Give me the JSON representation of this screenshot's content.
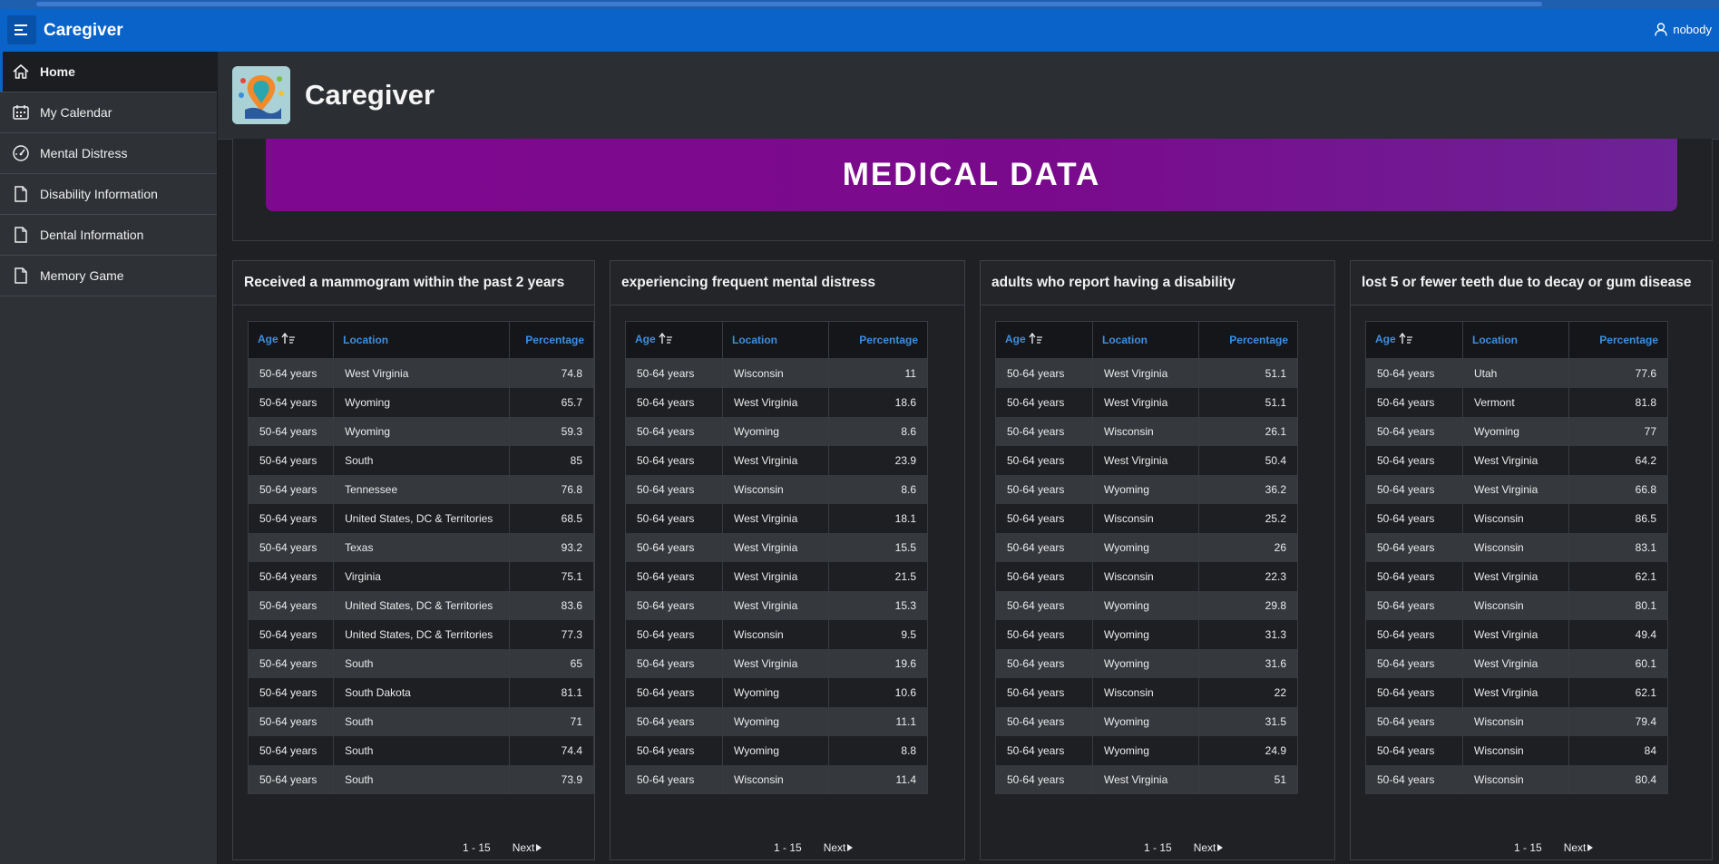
{
  "app": {
    "title": "Caregiver",
    "user": "nobody"
  },
  "sidebar": {
    "items": [
      {
        "label": "Home",
        "icon": "home-icon",
        "active": true
      },
      {
        "label": "My Calendar",
        "icon": "calendar-icon"
      },
      {
        "label": "Mental Distress",
        "icon": "gauge-icon"
      },
      {
        "label": "Disability Information",
        "icon": "document-icon"
      },
      {
        "label": "Dental Information",
        "icon": "document-icon"
      },
      {
        "label": "Memory Game",
        "icon": "document-icon"
      }
    ]
  },
  "page": {
    "title": "Caregiver",
    "banner": "MEDICAL DATA"
  },
  "colors": {
    "header": "#0a63c9",
    "banner": "#7f0890",
    "column_header": "#3d8ee0"
  },
  "reports": [
    {
      "title": "Received a mammogram within the past 2 years",
      "columns": [
        "Age",
        "Location",
        "Percentage"
      ],
      "rows": [
        [
          "50-64 years",
          "West Virginia",
          "74.8"
        ],
        [
          "50-64 years",
          "Wyoming",
          "65.7"
        ],
        [
          "50-64 years",
          "Wyoming",
          "59.3"
        ],
        [
          "50-64 years",
          "South",
          "85"
        ],
        [
          "50-64 years",
          "Tennessee",
          "76.8"
        ],
        [
          "50-64 years",
          "United States, DC & Territories",
          "68.5"
        ],
        [
          "50-64 years",
          "Texas",
          "93.2"
        ],
        [
          "50-64 years",
          "Virginia",
          "75.1"
        ],
        [
          "50-64 years",
          "United States, DC & Territories",
          "83.6"
        ],
        [
          "50-64 years",
          "United States, DC & Territories",
          "77.3"
        ],
        [
          "50-64 years",
          "South",
          "65"
        ],
        [
          "50-64 years",
          "South Dakota",
          "81.1"
        ],
        [
          "50-64 years",
          "South",
          "71"
        ],
        [
          "50-64 years",
          "South",
          "74.4"
        ],
        [
          "50-64 years",
          "South",
          "73.9"
        ]
      ],
      "pagination": {
        "range": "1 - 15",
        "next": "Next"
      }
    },
    {
      "title": "experiencing frequent mental distress",
      "columns": [
        "Age",
        "Location",
        "Percentage"
      ],
      "rows": [
        [
          "50-64 years",
          "Wisconsin",
          "11"
        ],
        [
          "50-64 years",
          "West Virginia",
          "18.6"
        ],
        [
          "50-64 years",
          "Wyoming",
          "8.6"
        ],
        [
          "50-64 years",
          "West Virginia",
          "23.9"
        ],
        [
          "50-64 years",
          "Wisconsin",
          "8.6"
        ],
        [
          "50-64 years",
          "West Virginia",
          "18.1"
        ],
        [
          "50-64 years",
          "West Virginia",
          "15.5"
        ],
        [
          "50-64 years",
          "West Virginia",
          "21.5"
        ],
        [
          "50-64 years",
          "West Virginia",
          "15.3"
        ],
        [
          "50-64 years",
          "Wisconsin",
          "9.5"
        ],
        [
          "50-64 years",
          "West Virginia",
          "19.6"
        ],
        [
          "50-64 years",
          "Wyoming",
          "10.6"
        ],
        [
          "50-64 years",
          "Wyoming",
          "11.1"
        ],
        [
          "50-64 years",
          "Wyoming",
          "8.8"
        ],
        [
          "50-64 years",
          "Wisconsin",
          "11.4"
        ]
      ],
      "pagination": {
        "range": "1 - 15",
        "next": "Next"
      }
    },
    {
      "title": "adults who report having a disability",
      "columns": [
        "Age",
        "Location",
        "Percentage"
      ],
      "rows": [
        [
          "50-64 years",
          "West Virginia",
          "51.1"
        ],
        [
          "50-64 years",
          "West Virginia",
          "51.1"
        ],
        [
          "50-64 years",
          "Wisconsin",
          "26.1"
        ],
        [
          "50-64 years",
          "West Virginia",
          "50.4"
        ],
        [
          "50-64 years",
          "Wyoming",
          "36.2"
        ],
        [
          "50-64 years",
          "Wisconsin",
          "25.2"
        ],
        [
          "50-64 years",
          "Wyoming",
          "26"
        ],
        [
          "50-64 years",
          "Wisconsin",
          "22.3"
        ],
        [
          "50-64 years",
          "Wyoming",
          "29.8"
        ],
        [
          "50-64 years",
          "Wyoming",
          "31.3"
        ],
        [
          "50-64 years",
          "Wyoming",
          "31.6"
        ],
        [
          "50-64 years",
          "Wisconsin",
          "22"
        ],
        [
          "50-64 years",
          "Wyoming",
          "31.5"
        ],
        [
          "50-64 years",
          "Wyoming",
          "24.9"
        ],
        [
          "50-64 years",
          "West Virginia",
          "51"
        ]
      ],
      "pagination": {
        "range": "1 - 15",
        "next": "Next"
      }
    },
    {
      "title": "lost 5 or fewer teeth due to decay or gum disease",
      "columns": [
        "Age",
        "Location",
        "Percentage"
      ],
      "rows": [
        [
          "50-64 years",
          "Utah",
          "77.6"
        ],
        [
          "50-64 years",
          "Vermont",
          "81.8"
        ],
        [
          "50-64 years",
          "Wyoming",
          "77"
        ],
        [
          "50-64 years",
          "West Virginia",
          "64.2"
        ],
        [
          "50-64 years",
          "West Virginia",
          "66.8"
        ],
        [
          "50-64 years",
          "Wisconsin",
          "86.5"
        ],
        [
          "50-64 years",
          "Wisconsin",
          "83.1"
        ],
        [
          "50-64 years",
          "West Virginia",
          "62.1"
        ],
        [
          "50-64 years",
          "Wisconsin",
          "80.1"
        ],
        [
          "50-64 years",
          "West Virginia",
          "49.4"
        ],
        [
          "50-64 years",
          "West Virginia",
          "60.1"
        ],
        [
          "50-64 years",
          "West Virginia",
          "62.1"
        ],
        [
          "50-64 years",
          "Wisconsin",
          "79.4"
        ],
        [
          "50-64 years",
          "Wisconsin",
          "84"
        ],
        [
          "50-64 years",
          "Wisconsin",
          "80.4"
        ]
      ],
      "pagination": {
        "range": "1 - 15",
        "next": "Next"
      }
    }
  ]
}
